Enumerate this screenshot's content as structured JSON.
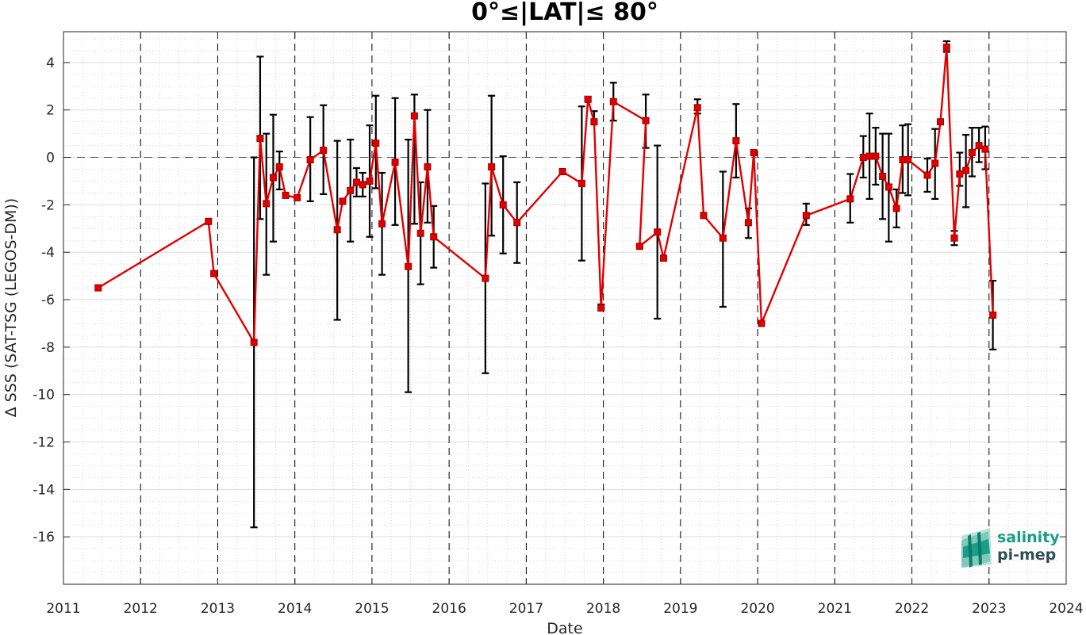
{
  "chart_data": {
    "type": "line",
    "title": "0°≤|LAT|≤ 80°",
    "xlabel": "Date",
    "ylabel": "Δ SSS (SAT-TSG (LEGOS-DM))",
    "xlim": [
      2011,
      2024
    ],
    "ylim": [
      -18,
      5.3
    ],
    "x_ticks": [
      2011,
      2012,
      2013,
      2014,
      2015,
      2016,
      2017,
      2018,
      2019,
      2020,
      2021,
      2022,
      2023,
      2024
    ],
    "y_ticks": [
      4,
      2,
      0,
      -2,
      -4,
      -6,
      -8,
      -10,
      -12,
      -14,
      -16
    ],
    "grid": true,
    "vertical_year_lines": true,
    "zero_line": true,
    "colors": {
      "series": "#e00000",
      "errorbar": "#000000",
      "logo_teal": "#1a9e8a",
      "logo_dark": "#2f4f57"
    },
    "series": [
      {
        "x": [
          2011.45,
          2012.88,
          2012.95,
          2013.47,
          2013.55,
          2013.63,
          2013.72,
          2013.8,
          2013.88,
          2014.03,
          2014.2,
          2014.37,
          2014.55,
          2014.62,
          2014.72,
          2014.8,
          2014.88,
          2014.97,
          2015.05,
          2015.13,
          2015.3,
          2015.47,
          2015.55,
          2015.63,
          2015.72,
          2015.8,
          2016.47,
          2016.55,
          2016.7,
          2016.88,
          2017.47,
          2017.72,
          2017.8,
          2017.88,
          2017.97,
          2018.13,
          2018.55,
          2018.47,
          2018.7,
          2018.78,
          2019.22,
          2019.3,
          2019.55,
          2019.72,
          2019.88,
          2019.95,
          2020.05,
          2020.63,
          2021.2,
          2021.37,
          2021.45,
          2021.53,
          2021.62,
          2021.7,
          2021.8,
          2021.88,
          2021.95,
          2022.2,
          2022.3,
          2022.37,
          2022.45,
          2022.55,
          2022.62,
          2022.7,
          2022.78,
          2022.87,
          2022.95,
          2023.05
        ],
        "y": [
          -5.5,
          -2.7,
          -4.9,
          -7.8,
          0.8,
          -1.95,
          -0.85,
          -0.4,
          -1.6,
          -1.7,
          -0.1,
          0.3,
          -3.05,
          -1.85,
          -1.4,
          -1.05,
          -1.15,
          -1.0,
          0.6,
          -2.8,
          -0.2,
          -4.6,
          1.75,
          -3.2,
          -0.4,
          -3.35,
          -5.1,
          -0.4,
          -2.0,
          -2.75,
          -0.6,
          -1.1,
          2.45,
          1.5,
          -6.35,
          2.35,
          1.55,
          -3.75,
          -3.15,
          -4.25,
          2.1,
          -2.45,
          -3.4,
          0.7,
          -2.75,
          0.2,
          -7.0,
          -2.45,
          -1.75,
          0.0,
          0.05,
          0.05,
          -0.8,
          -1.25,
          -2.15,
          -0.1,
          -0.1,
          -0.75,
          -0.25,
          1.5,
          4.65,
          -3.4,
          -0.7,
          -0.55,
          0.2,
          0.5,
          0.35,
          -6.65
        ],
        "err_low": [
          null,
          null,
          null,
          -15.6,
          -2.6,
          -4.95,
          -3.55,
          -1.35,
          null,
          null,
          -1.85,
          -1.55,
          -6.85,
          -1.95,
          -3.55,
          -1.65,
          -1.65,
          -3.35,
          -1.3,
          -4.95,
          -2.85,
          -9.9,
          -2.8,
          -5.35,
          -2.75,
          -4.65,
          -9.1,
          -3.3,
          -4.05,
          -4.45,
          null,
          -4.35,
          2.35,
          1.4,
          -6.35,
          1.55,
          0.4,
          -3.75,
          -6.8,
          -4.35,
          1.85,
          -2.55,
          -6.3,
          -0.85,
          -3.4,
          0.1,
          -7.0,
          -2.85,
          -2.75,
          -0.85,
          -1.75,
          -1.15,
          -2.6,
          -3.55,
          -2.95,
          -1.5,
          -1.6,
          -1.45,
          -1.75,
          1.45,
          4.45,
          -3.7,
          -1.2,
          -2.1,
          -0.8,
          -0.2,
          -0.5,
          -8.1
        ],
        "err_high": [
          null,
          null,
          null,
          0.0,
          4.25,
          1.0,
          1.8,
          0.25,
          null,
          null,
          1.7,
          2.2,
          0.7,
          -1.75,
          0.75,
          -0.45,
          -0.65,
          1.35,
          2.6,
          -0.65,
          2.5,
          0.75,
          2.65,
          -1.05,
          2.0,
          -2.05,
          -1.1,
          2.6,
          0.05,
          -1.05,
          null,
          2.15,
          2.55,
          1.95,
          -6.2,
          3.15,
          2.65,
          -3.7,
          0.5,
          -4.15,
          2.45,
          -2.35,
          -0.6,
          2.25,
          -2.15,
          0.3,
          -6.9,
          -1.95,
          -0.7,
          0.9,
          1.85,
          1.25,
          1.0,
          1.0,
          -1.35,
          1.35,
          1.4,
          -0.05,
          1.2,
          1.55,
          4.9,
          -3.1,
          0.2,
          0.95,
          1.25,
          1.25,
          1.3,
          -5.2
        ]
      }
    ]
  },
  "logo": {
    "line1": "salinity",
    "line2": "pi-mep"
  }
}
